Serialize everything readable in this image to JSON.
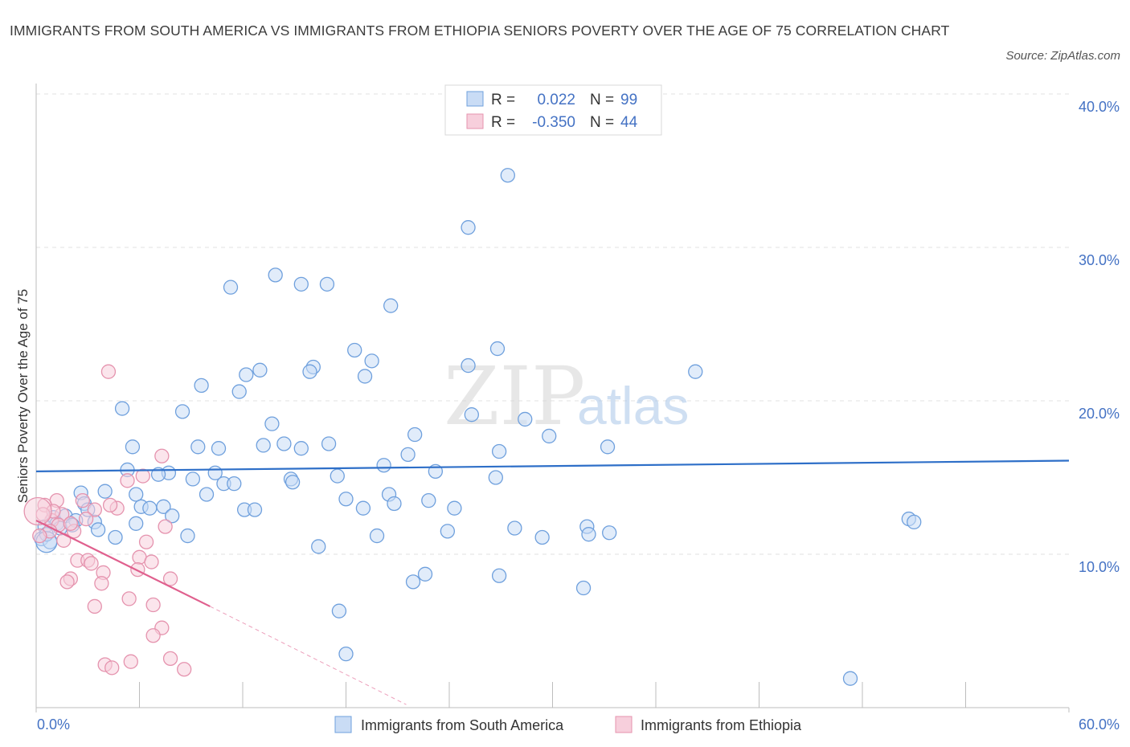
{
  "title": "IMMIGRANTS FROM SOUTH AMERICA VS IMMIGRANTS FROM ETHIOPIA SENIORS POVERTY OVER THE AGE OF 75 CORRELATION CHART",
  "source": "Source: ZipAtlas.com",
  "watermark": {
    "zip": "ZIP",
    "atlas": "atlas"
  },
  "chart_data": {
    "type": "scatter",
    "ylabel": "Seniors Poverty Over the Age of 75",
    "xlim": [
      0,
      60
    ],
    "ylim": [
      0,
      40
    ],
    "x_tick_labels": [
      {
        "value": 0,
        "label": "0.0%"
      },
      {
        "value": 60,
        "label": "60.0%"
      }
    ],
    "y_tick_labels": [
      {
        "value": 10,
        "label": "10.0%"
      },
      {
        "value": 20,
        "label": "20.0%"
      },
      {
        "value": 30,
        "label": "30.0%"
      },
      {
        "value": 40,
        "label": "40.0%"
      }
    ],
    "legend": {
      "position": "top-center",
      "entries": [
        {
          "r_label": "R =",
          "r_value": "0.022",
          "n_label": "N =",
          "n_value": "99"
        },
        {
          "r_label": "R =",
          "r_value": "-0.350",
          "n_label": "N =",
          "n_value": "44"
        }
      ]
    },
    "series": [
      {
        "name": "Immigrants from South America",
        "color": "#6fa0dd",
        "fill": "#c9dcf5",
        "line_color": "#2e6fc8",
        "trend": {
          "x": [
            0,
            60
          ],
          "y": [
            15.4,
            16.1
          ]
        },
        "points": [
          [
            27.4,
            34.7
          ],
          [
            25.1,
            31.3
          ],
          [
            13.9,
            28.2
          ],
          [
            15.4,
            27.6
          ],
          [
            16.9,
            27.6
          ],
          [
            11.3,
            27.4
          ],
          [
            20.6,
            26.2
          ],
          [
            18.5,
            23.3
          ],
          [
            26.8,
            23.4
          ],
          [
            19.5,
            22.6
          ],
          [
            16.1,
            22.2
          ],
          [
            25.1,
            22.3
          ],
          [
            13.0,
            22.0
          ],
          [
            12.2,
            21.7
          ],
          [
            15.9,
            21.9
          ],
          [
            19.1,
            21.6
          ],
          [
            38.3,
            21.9
          ],
          [
            9.6,
            21.0
          ],
          [
            11.8,
            20.6
          ],
          [
            5.0,
            19.5
          ],
          [
            8.5,
            19.3
          ],
          [
            25.3,
            19.1
          ],
          [
            28.4,
            18.8
          ],
          [
            13.7,
            18.5
          ],
          [
            22.0,
            17.8
          ],
          [
            29.8,
            17.7
          ],
          [
            14.4,
            17.2
          ],
          [
            17.0,
            17.2
          ],
          [
            13.2,
            17.1
          ],
          [
            9.4,
            17.0
          ],
          [
            10.6,
            16.9
          ],
          [
            5.6,
            17.0
          ],
          [
            15.4,
            16.9
          ],
          [
            26.9,
            16.7
          ],
          [
            21.6,
            16.5
          ],
          [
            33.2,
            17.0
          ],
          [
            20.2,
            15.8
          ],
          [
            23.2,
            15.4
          ],
          [
            5.3,
            15.5
          ],
          [
            7.7,
            15.3
          ],
          [
            10.4,
            15.3
          ],
          [
            7.1,
            15.2
          ],
          [
            9.1,
            14.9
          ],
          [
            14.8,
            14.9
          ],
          [
            17.5,
            15.1
          ],
          [
            26.7,
            15.0
          ],
          [
            10.9,
            14.6
          ],
          [
            11.5,
            14.6
          ],
          [
            14.9,
            14.7
          ],
          [
            4.0,
            14.1
          ],
          [
            2.6,
            14.0
          ],
          [
            9.9,
            13.9
          ],
          [
            5.8,
            13.9
          ],
          [
            20.5,
            13.9
          ],
          [
            18.0,
            13.6
          ],
          [
            22.8,
            13.5
          ],
          [
            2.8,
            13.3
          ],
          [
            20.8,
            13.3
          ],
          [
            3.0,
            12.9
          ],
          [
            6.1,
            13.1
          ],
          [
            6.6,
            13.0
          ],
          [
            7.4,
            13.1
          ],
          [
            12.1,
            12.9
          ],
          [
            12.7,
            12.9
          ],
          [
            19.0,
            13.0
          ],
          [
            24.3,
            13.0
          ],
          [
            1.0,
            12.4
          ],
          [
            1.7,
            12.5
          ],
          [
            2.3,
            12.2
          ],
          [
            3.4,
            12.1
          ],
          [
            5.8,
            12.0
          ],
          [
            7.9,
            12.5
          ],
          [
            1.2,
            12.0
          ],
          [
            50.7,
            12.3
          ],
          [
            51.0,
            12.1
          ],
          [
            0.5,
            11.8
          ],
          [
            1.4,
            11.7
          ],
          [
            3.6,
            11.6
          ],
          [
            23.9,
            11.5
          ],
          [
            27.8,
            11.7
          ],
          [
            32.0,
            11.8
          ],
          [
            4.6,
            11.1
          ],
          [
            8.8,
            11.2
          ],
          [
            19.8,
            11.2
          ],
          [
            29.4,
            11.1
          ],
          [
            32.1,
            11.3
          ],
          [
            33.3,
            11.4
          ],
          [
            0.3,
            11.0
          ],
          [
            0.8,
            10.8
          ],
          [
            16.4,
            10.5
          ],
          [
            22.6,
            8.7
          ],
          [
            21.9,
            8.2
          ],
          [
            26.9,
            8.6
          ],
          [
            31.8,
            7.8
          ],
          [
            17.6,
            6.3
          ],
          [
            18.0,
            3.5
          ],
          [
            47.3,
            1.9
          ],
          [
            0.6,
            11.3
          ],
          [
            2.1,
            11.9
          ]
        ],
        "large_points": [
          [
            0.6,
            10.8
          ]
        ]
      },
      {
        "name": "Immigrants from Ethiopia",
        "color": "#e593ae",
        "fill": "#f7cfdc",
        "line_color": "#e0608e",
        "trend": {
          "x": [
            0,
            10.1
          ],
          "y": [
            12.2,
            6.6
          ]
        },
        "trend_extension": {
          "x": [
            10.1,
            21.5
          ],
          "y": [
            6.6,
            0.2
          ]
        },
        "points": [
          [
            4.2,
            21.9
          ],
          [
            7.3,
            16.4
          ],
          [
            6.2,
            15.1
          ],
          [
            5.3,
            14.8
          ],
          [
            1.2,
            13.5
          ],
          [
            2.7,
            13.5
          ],
          [
            0.5,
            13.2
          ],
          [
            4.7,
            13.0
          ],
          [
            3.4,
            12.9
          ],
          [
            1.5,
            12.6
          ],
          [
            2.9,
            12.3
          ],
          [
            0.9,
            12.2
          ],
          [
            7.5,
            11.8
          ],
          [
            2.2,
            11.5
          ],
          [
            6.4,
            10.8
          ],
          [
            6.0,
            9.8
          ],
          [
            2.4,
            9.6
          ],
          [
            3.0,
            9.6
          ],
          [
            6.7,
            9.5
          ],
          [
            3.2,
            9.4
          ],
          [
            5.9,
            9.0
          ],
          [
            3.9,
            8.8
          ],
          [
            2.0,
            8.4
          ],
          [
            7.8,
            8.4
          ],
          [
            1.8,
            8.2
          ],
          [
            3.8,
            8.1
          ],
          [
            5.4,
            7.1
          ],
          [
            6.8,
            6.7
          ],
          [
            3.4,
            6.6
          ],
          [
            7.3,
            5.2
          ],
          [
            6.8,
            4.7
          ],
          [
            7.8,
            3.2
          ],
          [
            4.0,
            2.8
          ],
          [
            5.5,
            3.0
          ],
          [
            4.4,
            2.6
          ],
          [
            8.6,
            2.5
          ],
          [
            1.0,
            12.8
          ],
          [
            0.4,
            12.6
          ],
          [
            1.3,
            11.9
          ],
          [
            2.0,
            12.0
          ],
          [
            4.3,
            13.2
          ],
          [
            0.8,
            11.5
          ],
          [
            0.2,
            11.2
          ],
          [
            1.6,
            10.9
          ]
        ],
        "large_points": [
          [
            0.1,
            12.8
          ]
        ]
      }
    ]
  }
}
